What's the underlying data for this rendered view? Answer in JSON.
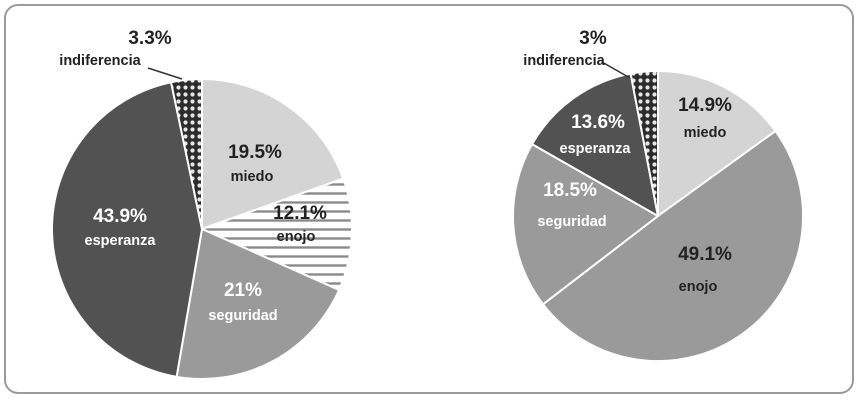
{
  "colors": {
    "miedo": "#d4d4d4",
    "enojo": "#ffffff",
    "enojo_pattern_line": "#8a8a8a",
    "seguridad": "#9a9a9a",
    "esperanza": "#525252",
    "indiferencia": "#2c2c2c",
    "indiferencia_dot": "#e6e6e6",
    "edge": "#ffffff",
    "border": "#9a9a9a"
  },
  "chart_data": [
    {
      "type": "pie",
      "title": "",
      "slices": [
        {
          "key": "miedo",
          "label": "miedo",
          "value": 19.5,
          "value_label": "19.5%",
          "fill": "miedo",
          "text_color": "#222222"
        },
        {
          "key": "enojo",
          "label": "enojo",
          "value": 12.1,
          "value_label": "12.1%",
          "fill": "enojo_hatch",
          "text_color": "#222222"
        },
        {
          "key": "seguridad",
          "label": "seguridad",
          "value": 21,
          "value_label": "21%",
          "fill": "seguridad",
          "text_color": "#ffffff"
        },
        {
          "key": "esperanza",
          "label": "esperanza",
          "value": 43.9,
          "value_label": "43.9%",
          "fill": "esperanza",
          "text_color": "#ffffff"
        },
        {
          "key": "indiferencia",
          "label": "indiferencia",
          "value": 3.3,
          "value_label": "3.3%",
          "fill": "indiferencia_dots",
          "text_color": "#222222",
          "label_outside": true
        }
      ]
    },
    {
      "type": "pie",
      "title": "",
      "slices": [
        {
          "key": "miedo",
          "label": "miedo",
          "value": 14.9,
          "value_label": "14.9%",
          "fill": "miedo",
          "text_color": "#222222"
        },
        {
          "key": "enojo",
          "label": "enojo",
          "value": 49.1,
          "value_label": "49.1%",
          "fill": "seguridad",
          "text_color": "#222222"
        },
        {
          "key": "seguridad",
          "label": "seguridad",
          "value": 18.5,
          "value_label": "18.5%",
          "fill": "seguridad",
          "text_color": "#ffffff"
        },
        {
          "key": "esperanza",
          "label": "esperanza",
          "value": 13.6,
          "value_label": "13.6%",
          "fill": "esperanza",
          "text_color": "#ffffff"
        },
        {
          "key": "indiferencia",
          "label": "indiferencia",
          "value": 3,
          "value_label": "3%",
          "fill": "indiferencia_dots",
          "text_color": "#222222",
          "label_outside": true
        }
      ]
    }
  ]
}
